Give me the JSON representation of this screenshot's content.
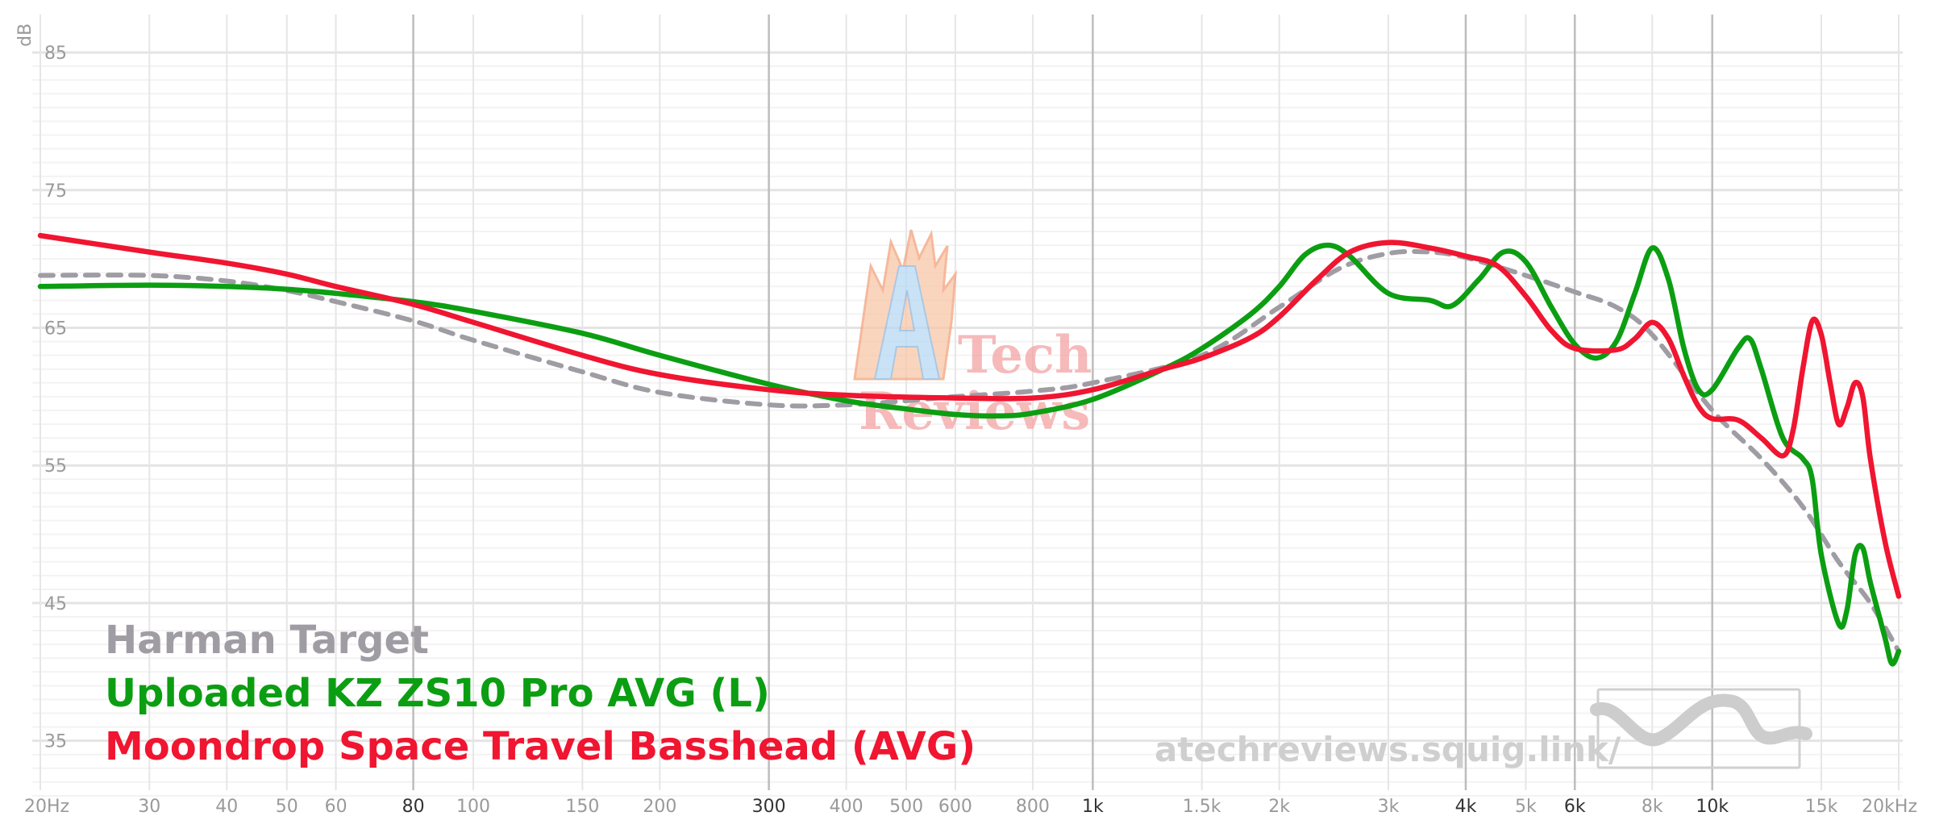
{
  "chart_data": {
    "type": "line",
    "ylabel": "dB",
    "ylim": [
      30,
      86
    ],
    "xlim": [
      20,
      20000
    ],
    "xscale": "log",
    "grid": true,
    "legend_position": "bottom-left",
    "y_ticks": [
      85,
      75,
      65,
      55,
      45,
      35
    ],
    "x_ticks": [
      {
        "f": 20,
        "label": "20Hz",
        "major": false
      },
      {
        "f": 30,
        "label": "30",
        "major": false
      },
      {
        "f": 40,
        "label": "40",
        "major": false
      },
      {
        "f": 50,
        "label": "50",
        "major": false
      },
      {
        "f": 60,
        "label": "60",
        "major": false
      },
      {
        "f": 80,
        "label": "80",
        "major": true
      },
      {
        "f": 100,
        "label": "100",
        "major": false
      },
      {
        "f": 150,
        "label": "150",
        "major": false
      },
      {
        "f": 200,
        "label": "200",
        "major": false
      },
      {
        "f": 300,
        "label": "300",
        "major": true
      },
      {
        "f": 400,
        "label": "400",
        "major": false
      },
      {
        "f": 500,
        "label": "500",
        "major": false
      },
      {
        "f": 600,
        "label": "600",
        "major": false
      },
      {
        "f": 800,
        "label": "800",
        "major": false
      },
      {
        "f": 1000,
        "label": "1k",
        "major": true
      },
      {
        "f": 1500,
        "label": "1.5k",
        "major": false
      },
      {
        "f": 2000,
        "label": "2k",
        "major": false
      },
      {
        "f": 3000,
        "label": "3k",
        "major": false
      },
      {
        "f": 4000,
        "label": "4k",
        "major": true
      },
      {
        "f": 5000,
        "label": "5k",
        "major": false
      },
      {
        "f": 6000,
        "label": "6k",
        "major": true
      },
      {
        "f": 8000,
        "label": "8k",
        "major": false
      },
      {
        "f": 10000,
        "label": "10k",
        "major": true
      },
      {
        "f": 15000,
        "label": "15k",
        "major": false
      },
      {
        "f": 20000,
        "label": "20kHz",
        "major": false
      }
    ],
    "series": [
      {
        "name": "Harman Target",
        "color": "#a09ca4",
        "dashed": true,
        "points": [
          [
            20,
            68.8
          ],
          [
            30,
            68.8
          ],
          [
            40,
            68.4
          ],
          [
            50,
            67.7
          ],
          [
            60,
            66.9
          ],
          [
            80,
            65.5
          ],
          [
            100,
            64.1
          ],
          [
            150,
            61.8
          ],
          [
            200,
            60.3
          ],
          [
            300,
            59.4
          ],
          [
            400,
            59.4
          ],
          [
            500,
            59.7
          ],
          [
            600,
            60.0
          ],
          [
            800,
            60.4
          ],
          [
            1000,
            61.0
          ],
          [
            1500,
            63.0
          ],
          [
            2000,
            66.5
          ],
          [
            2500,
            69.3
          ],
          [
            3000,
            70.4
          ],
          [
            3500,
            70.5
          ],
          [
            4000,
            70.1
          ],
          [
            5000,
            68.8
          ],
          [
            6000,
            67.6
          ],
          [
            7000,
            66.5
          ],
          [
            8000,
            64.5
          ],
          [
            10000,
            59.0
          ],
          [
            12000,
            55.5
          ],
          [
            14000,
            52.0
          ],
          [
            16000,
            48.0
          ],
          [
            18000,
            45.0
          ],
          [
            20000,
            41.5
          ]
        ]
      },
      {
        "name": "Uploaded KZ ZS10 Pro AVG (L)",
        "color": "#0c9e12",
        "dashed": false,
        "points": [
          [
            20,
            68.0
          ],
          [
            30,
            68.1
          ],
          [
            40,
            68.0
          ],
          [
            50,
            67.8
          ],
          [
            60,
            67.5
          ],
          [
            80,
            66.9
          ],
          [
            100,
            66.2
          ],
          [
            150,
            64.6
          ],
          [
            200,
            63.0
          ],
          [
            300,
            60.9
          ],
          [
            400,
            59.7
          ],
          [
            500,
            59.1
          ],
          [
            600,
            58.7
          ],
          [
            700,
            58.6
          ],
          [
            800,
            58.8
          ],
          [
            1000,
            59.8
          ],
          [
            1300,
            62.0
          ],
          [
            1500,
            63.5
          ],
          [
            1800,
            66.0
          ],
          [
            2000,
            68.0
          ],
          [
            2200,
            70.3
          ],
          [
            2400,
            71.0
          ],
          [
            2600,
            70.2
          ],
          [
            3000,
            67.5
          ],
          [
            3500,
            67.0
          ],
          [
            3800,
            66.6
          ],
          [
            4200,
            68.5
          ],
          [
            4600,
            70.5
          ],
          [
            5000,
            69.8
          ],
          [
            5500,
            66.5
          ],
          [
            6000,
            63.8
          ],
          [
            6500,
            62.8
          ],
          [
            7000,
            64.0
          ],
          [
            7500,
            67.5
          ],
          [
            8000,
            70.8
          ],
          [
            8500,
            68.5
          ],
          [
            9000,
            63.5
          ],
          [
            9500,
            60.5
          ],
          [
            10000,
            60.5
          ],
          [
            11000,
            63.5
          ],
          [
            11500,
            64.2
          ],
          [
            12000,
            62.0
          ],
          [
            13000,
            57.0
          ],
          [
            14000,
            55.5
          ],
          [
            14500,
            54.0
          ],
          [
            15000,
            48.5
          ],
          [
            16000,
            43.5
          ],
          [
            16500,
            44.5
          ],
          [
            17000,
            48.5
          ],
          [
            17500,
            49.0
          ],
          [
            18000,
            46.5
          ],
          [
            19000,
            42.5
          ],
          [
            19500,
            40.6
          ],
          [
            20000,
            41.5
          ]
        ]
      },
      {
        "name": "Moondrop Space Travel Basshead (AVG)",
        "color": "#f01530",
        "dashed": false,
        "points": [
          [
            20,
            71.7
          ],
          [
            30,
            70.5
          ],
          [
            40,
            69.7
          ],
          [
            50,
            68.9
          ],
          [
            60,
            68.0
          ],
          [
            80,
            66.7
          ],
          [
            100,
            65.4
          ],
          [
            150,
            63.0
          ],
          [
            200,
            61.6
          ],
          [
            300,
            60.5
          ],
          [
            400,
            60.1
          ],
          [
            600,
            59.9
          ],
          [
            800,
            59.9
          ],
          [
            1000,
            60.5
          ],
          [
            1300,
            62.0
          ],
          [
            1500,
            62.8
          ],
          [
            1800,
            64.3
          ],
          [
            2000,
            65.8
          ],
          [
            2300,
            68.5
          ],
          [
            2600,
            70.5
          ],
          [
            3000,
            71.2
          ],
          [
            3500,
            70.8
          ],
          [
            4000,
            70.2
          ],
          [
            4500,
            69.5
          ],
          [
            5000,
            67.3
          ],
          [
            5500,
            64.8
          ],
          [
            6000,
            63.5
          ],
          [
            7000,
            63.4
          ],
          [
            7500,
            64.2
          ],
          [
            8000,
            65.4
          ],
          [
            8500,
            64.2
          ],
          [
            9000,
            61.5
          ],
          [
            9500,
            59.3
          ],
          [
            10000,
            58.4
          ],
          [
            11000,
            58.3
          ],
          [
            12000,
            57.0
          ],
          [
            13000,
            55.7
          ],
          [
            13500,
            57.5
          ],
          [
            14000,
            62.0
          ],
          [
            14500,
            65.5
          ],
          [
            15000,
            64.5
          ],
          [
            15500,
            61.0
          ],
          [
            16000,
            58.0
          ],
          [
            16500,
            59.2
          ],
          [
            17000,
            61.0
          ],
          [
            17500,
            60.0
          ],
          [
            18000,
            55.5
          ],
          [
            19000,
            49.5
          ],
          [
            20000,
            45.5
          ]
        ]
      }
    ]
  },
  "legend": [
    {
      "label": "Harman Target",
      "color": "#a09ca4"
    },
    {
      "label": "Uploaded KZ ZS10 Pro AVG (L)",
      "color": "#0c9e12"
    },
    {
      "label": "Moondrop Space Travel Basshead (AVG)",
      "color": "#f01530"
    }
  ],
  "watermark": {
    "url": "atechreviews.squig.link/",
    "brand_letter": "A",
    "brand_line1": "Tech",
    "brand_line2": "Reviews"
  }
}
